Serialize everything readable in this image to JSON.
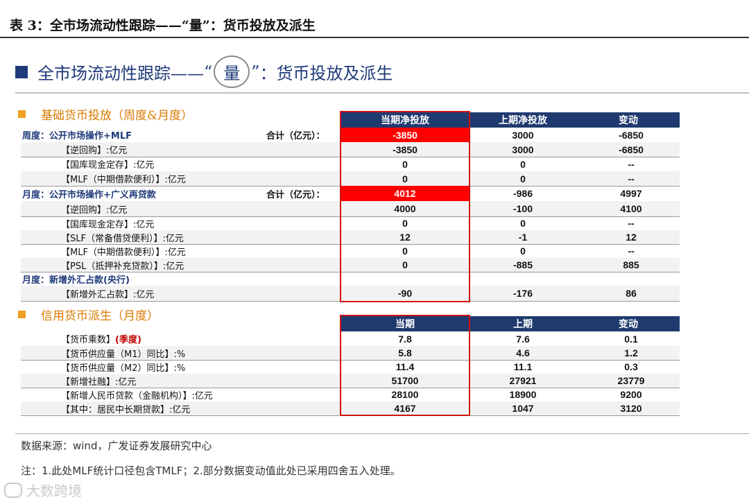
{
  "page_title": "表 3：全市场流动性跟踪——“量”：货币投放及派生",
  "panel": {
    "title_prefix": "全市场流动性跟踪——",
    "title_quote_open": "“",
    "title_circled": "量",
    "title_quote_close": "”",
    "title_suffix": "：货币投放及派生"
  },
  "section1": {
    "title": "基础货币投放（周度&月度）",
    "headers": [
      "当期净投放",
      "上期净投放",
      "变动"
    ],
    "rows": [
      {
        "label": "周度：公开市场操作+MLF",
        "sum": "合计（亿元）：",
        "v1": "-3850",
        "v2": "3000",
        "v3": "-6850",
        "blue": true,
        "hl": true
      },
      {
        "label": "【逆回购】:亿元",
        "v1": "-3850",
        "v2": "3000",
        "v3": "-6850"
      },
      {
        "label": "【国库现金定存】:亿元",
        "v1": "0",
        "v2": "0",
        "v3": "--"
      },
      {
        "label": "【MLF（中期借款便利）】:亿元",
        "v1": "0",
        "v2": "0",
        "v3": "--"
      },
      {
        "label": "月度：公开市场操作+广义再贷款",
        "sum": "合计（亿元）：",
        "v1": "4012",
        "v2": "-986",
        "v3": "4997",
        "blue": true,
        "hl": true
      },
      {
        "label": "【逆回购】:亿元",
        "v1": "4000",
        "v2": "-100",
        "v3": "4100"
      },
      {
        "label": "【国库现金定存】:亿元",
        "v1": "0",
        "v2": "0",
        "v3": "--"
      },
      {
        "label": "【SLF（常备借贷便利）】:亿元",
        "v1": "12",
        "v2": "-1",
        "v3": "12"
      },
      {
        "label": "【MLF（中期借款便利）】:亿元",
        "v1": "0",
        "v2": "0",
        "v3": "--"
      },
      {
        "label": "【PSL（抵押补充贷款）】:亿元",
        "v1": "0",
        "v2": "-885",
        "v3": "885"
      },
      {
        "label": "月度：新增外汇占款(央行)",
        "v1": "",
        "v2": "",
        "v3": "",
        "blue": true
      },
      {
        "label": "【新增外汇占款】:亿元",
        "v1": "-90",
        "v2": "-176",
        "v3": "86"
      }
    ]
  },
  "section2": {
    "title": "信用货币派生（月度）",
    "headers": [
      "当期",
      "上期",
      "变动"
    ],
    "rows": [
      {
        "label": "【货币乘数】",
        "label_extra": "(季度)",
        "v1": "7.8",
        "v2": "7.6",
        "v3": "0.1"
      },
      {
        "label": "【货币供应量（M1）同比】:%",
        "v1": "5.8",
        "v2": "4.6",
        "v3": "1.2"
      },
      {
        "label": "【货币供应量（M2）同比】:%",
        "v1": "11.4",
        "v2": "11.1",
        "v3": "0.3"
      },
      {
        "label": "【新增社融】:亿元",
        "v1": "51700",
        "v2": "27921",
        "v3": "23779"
      },
      {
        "label": "【新增人民币贷款（金融机构）】:亿元",
        "v1": "28100",
        "v2": "18900",
        "v3": "9200"
      },
      {
        "label": "【其中：居民中长期贷款】:亿元",
        "v1": "4167",
        "v2": "1047",
        "v3": "3120"
      }
    ]
  },
  "source": "数据来源：wind，广发证券发展研究中心",
  "note": "注：1.此处MLF统计口径包含TMLF；2.部分数据变动值此处已采用四舍五入处理。",
  "watermark": "大数跨境",
  "colors": {
    "header_bg": "#1f3a6f",
    "title_blue": "#1f3a7a",
    "highlight_red": "#ff0000",
    "section_orange": "#d97a00"
  }
}
